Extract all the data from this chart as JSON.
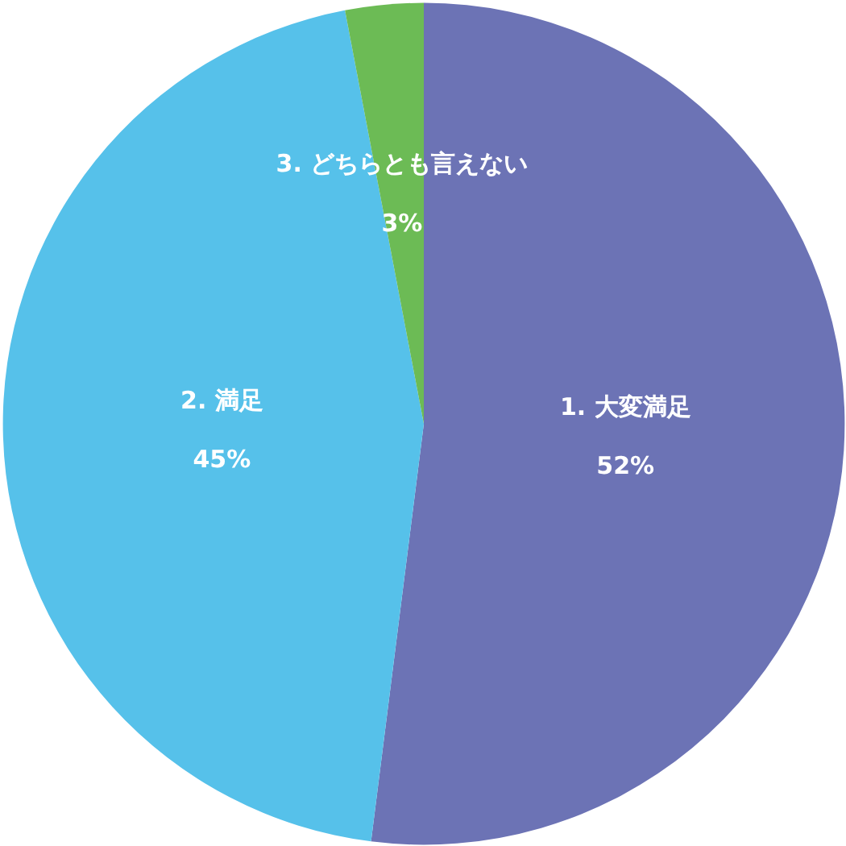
{
  "chart_data": {
    "type": "pie",
    "categories": [
      "1. 大変満足",
      "2. 満足",
      "3. どちらとも言えない"
    ],
    "values": [
      52,
      45,
      3
    ],
    "colors": [
      "#6c73b5",
      "#56c1ea",
      "#6cbb55"
    ],
    "value_labels": [
      "52%",
      "45%",
      "3%"
    ]
  }
}
